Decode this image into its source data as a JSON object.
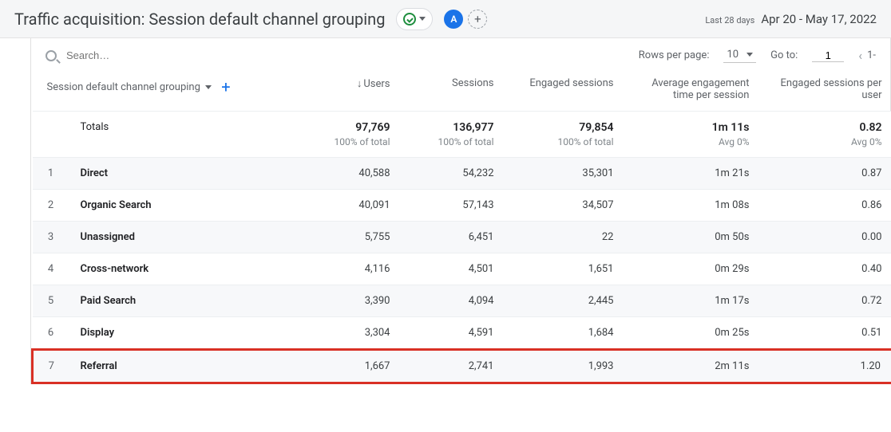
{
  "header": {
    "title": "Traffic acquisition: Session default channel grouping",
    "avatar_letter": "A",
    "date_label": "Last 28 days",
    "date_range": "Apr 20 - May 17, 2022"
  },
  "toolbar": {
    "search_placeholder": "Search…",
    "rows_per_page_label": "Rows per page:",
    "rows_per_page_value": "10",
    "goto_label": "Go to:",
    "goto_value": "1",
    "page_info": "1-"
  },
  "table": {
    "dimension_label": "Session default channel grouping",
    "columns": [
      {
        "key": "users",
        "label": "Users",
        "sorted": true
      },
      {
        "key": "sessions",
        "label": "Sessions"
      },
      {
        "key": "engaged_sessions",
        "label": "Engaged sessions"
      },
      {
        "key": "avg_engagement",
        "label": "Average engagement time per session"
      },
      {
        "key": "engaged_per_user",
        "label": "Engaged sessions per user"
      }
    ],
    "totals": {
      "label": "Totals",
      "users": {
        "value": "97,769",
        "sub": "100% of total"
      },
      "sessions": {
        "value": "136,977",
        "sub": "100% of total"
      },
      "engaged_sessions": {
        "value": "79,854",
        "sub": "100% of total"
      },
      "avg_engagement": {
        "value": "1m 11s",
        "sub": "Avg 0%"
      },
      "engaged_per_user": {
        "value": "0.82",
        "sub": "Avg 0%"
      }
    },
    "rows": [
      {
        "idx": "1",
        "dim": "Direct",
        "users": "40,588",
        "sessions": "54,232",
        "engaged_sessions": "35,301",
        "avg_engagement": "1m 21s",
        "engaged_per_user": "0.87",
        "highlight": false
      },
      {
        "idx": "2",
        "dim": "Organic Search",
        "users": "40,091",
        "sessions": "57,143",
        "engaged_sessions": "34,507",
        "avg_engagement": "1m 08s",
        "engaged_per_user": "0.86",
        "highlight": false
      },
      {
        "idx": "3",
        "dim": "Unassigned",
        "users": "5,755",
        "sessions": "6,451",
        "engaged_sessions": "22",
        "avg_engagement": "0m 50s",
        "engaged_per_user": "0.00",
        "highlight": false
      },
      {
        "idx": "4",
        "dim": "Cross-network",
        "users": "4,116",
        "sessions": "4,501",
        "engaged_sessions": "1,651",
        "avg_engagement": "0m 29s",
        "engaged_per_user": "0.40",
        "highlight": false
      },
      {
        "idx": "5",
        "dim": "Paid Search",
        "users": "3,390",
        "sessions": "4,094",
        "engaged_sessions": "2,445",
        "avg_engagement": "1m 17s",
        "engaged_per_user": "0.72",
        "highlight": false
      },
      {
        "idx": "6",
        "dim": "Display",
        "users": "3,304",
        "sessions": "4,591",
        "engaged_sessions": "1,684",
        "avg_engagement": "0m 25s",
        "engaged_per_user": "0.51",
        "highlight": false
      },
      {
        "idx": "7",
        "dim": "Referral",
        "users": "1,667",
        "sessions": "2,741",
        "engaged_sessions": "1,993",
        "avg_engagement": "2m 11s",
        "engaged_per_user": "1.20",
        "highlight": true
      }
    ]
  },
  "style": {
    "highlight_color": "#d93025",
    "link_blue": "#1a73e8",
    "text_primary": "#3c4043",
    "text_secondary": "#5f6368",
    "row_alt_bg": "#f7f8fa",
    "border_color": "#eceff1"
  }
}
